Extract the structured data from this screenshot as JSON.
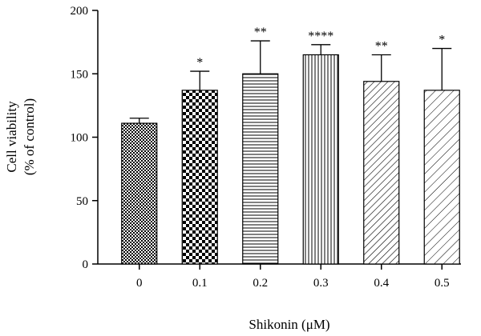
{
  "chart_data": {
    "type": "bar",
    "title": "",
    "xlabel": "Shikonin (μM)",
    "ylabel_lines": [
      "Cell viability",
      "(% of control)"
    ],
    "categories": [
      "0",
      "0.1",
      "0.2",
      "0.3",
      "0.4",
      "0.5"
    ],
    "values": [
      111,
      137,
      150,
      165,
      144,
      137
    ],
    "error_upper": [
      115,
      152,
      176,
      173,
      165,
      170
    ],
    "significance": [
      "",
      "*",
      "**",
      "****",
      "**",
      "*"
    ],
    "fill_patterns": [
      "fine-checker",
      "coarse-checker",
      "horizontal-lines",
      "vertical-lines",
      "diagonal-lines",
      "diagonal-lines-wide"
    ],
    "ylim": [
      0,
      200
    ],
    "yticks": [
      0,
      50,
      100,
      150,
      200
    ],
    "grid": false,
    "legend": "none",
    "colors": {
      "axis": "#000000",
      "bar_stroke": "#000000",
      "background": "#ffffff"
    }
  }
}
